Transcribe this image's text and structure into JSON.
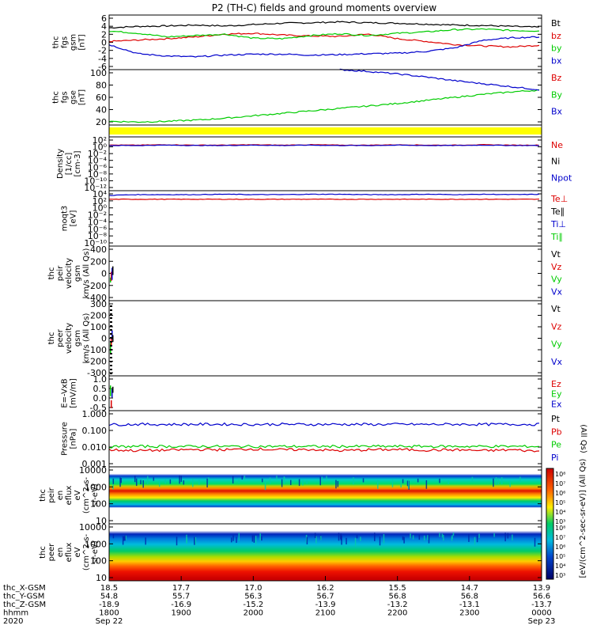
{
  "title": "P2 (TH-C) fields and ground moments overview",
  "footer": {
    "row_labels": [
      "thc_X-GSM",
      "thc_Y-GSM",
      "thc_Z-GSM",
      "hhmm",
      "2020"
    ],
    "columns": [
      {
        "x": "18.5",
        "y": "54.8",
        "z": "-18.9",
        "hhmm": "1800",
        "date": "Sep 22"
      },
      {
        "x": "17.7",
        "y": "55.7",
        "z": "-16.9",
        "hhmm": "1900",
        "date": ""
      },
      {
        "x": "17.0",
        "y": "56.3",
        "z": "-15.2",
        "hhmm": "2000",
        "date": ""
      },
      {
        "x": "16.2",
        "y": "56.7",
        "z": "-13.9",
        "hhmm": "2100",
        "date": ""
      },
      {
        "x": "15.5",
        "y": "56.8",
        "z": "-13.2",
        "hhmm": "2200",
        "date": ""
      },
      {
        "x": "14.7",
        "y": "56.8",
        "z": "-13.1",
        "hhmm": "2300",
        "date": ""
      },
      {
        "x": "13.9",
        "y": "56.6",
        "z": "-13.7",
        "hhmm": "0000",
        "date": "Sep 23"
      }
    ]
  },
  "colorbar": {
    "label": "[eV/(cm^2-sec-sr-eV)] (All Qs)",
    "ticks_top": [
      "10⁸",
      "10⁷",
      "10⁶",
      "10⁵",
      "10⁴",
      "10³"
    ],
    "ticks_bottom": [
      "10⁸",
      "10⁷",
      "10⁶",
      "10⁵",
      "10⁴",
      "10³"
    ]
  },
  "chart_data": [
    {
      "type": "line",
      "ylabel": [
        "thc",
        "fgs",
        "gsm",
        "[nT]"
      ],
      "yticks": [
        "6",
        "4",
        "2",
        "0",
        "-2",
        "-4",
        "-6"
      ],
      "ylim": [
        -6,
        6
      ],
      "legend": [
        {
          "text": "Bt",
          "color": "#000000"
        },
        {
          "text": "bz",
          "color": "#dd0000"
        },
        {
          "text": "by",
          "color": "#00cc00"
        },
        {
          "text": "bx",
          "color": "#0000cc"
        }
      ],
      "series": [
        {
          "name": "Bt",
          "color": "#000000",
          "values": [
            3.2,
            3.5,
            3.6,
            3.8,
            3.6,
            3.9,
            4.2,
            4.3,
            4.5,
            4.3,
            4.2,
            4.0,
            3.8,
            3.7,
            3.5,
            3.3
          ]
        },
        {
          "name": "bz",
          "color": "#dd0000",
          "values": [
            0.2,
            0.5,
            0.8,
            1.2,
            1.8,
            2.0,
            1.6,
            1.4,
            1.3,
            1.8,
            0.8,
            0.2,
            -0.5,
            -0.8,
            -1.0,
            -0.6
          ]
        },
        {
          "name": "by",
          "color": "#00cc00",
          "values": [
            2.5,
            2.0,
            1.2,
            1.5,
            1.8,
            0.9,
            0.8,
            1.5,
            1.9,
            1.5,
            2.0,
            2.3,
            2.8,
            2.9,
            2.6,
            2.5
          ]
        },
        {
          "name": "bx",
          "color": "#0000cc",
          "values": [
            -0.5,
            -2.5,
            -3.0,
            -3.2,
            -2.8,
            -2.6,
            -2.6,
            -2.8,
            -2.7,
            -2.5,
            -2.4,
            -2.0,
            -1.2,
            0.5,
            1.0,
            1.2
          ]
        }
      ]
    },
    {
      "type": "line",
      "ylabel": [
        "thc",
        "fgs",
        "gse",
        "[nT]"
      ],
      "yticks": [
        "100",
        "80",
        "60",
        "40",
        "20"
      ],
      "ylim": [
        10,
        100
      ],
      "legend": [
        {
          "text": "Bz",
          "color": "#dd0000"
        },
        {
          "text": "By",
          "color": "#00cc00"
        },
        {
          "text": "Bx",
          "color": "#0000cc"
        }
      ],
      "series": [
        {
          "name": "By",
          "color": "#00cc00",
          "values": [
            16,
            15,
            16,
            18,
            21,
            25,
            29,
            33,
            37,
            41,
            45,
            50,
            55,
            60,
            64,
            67
          ]
        },
        {
          "name": "Bx",
          "color": "#0000cc",
          "values": [
            null,
            null,
            null,
            null,
            null,
            null,
            null,
            null,
            100,
            97,
            93,
            88,
            82,
            77,
            72,
            67
          ]
        }
      ]
    },
    {
      "type": "flag_bar",
      "ylabel": [],
      "yticks": []
    },
    {
      "type": "line",
      "scale": "log",
      "ylabel": [
        "Density",
        "[1/cc]",
        "[cm-3]"
      ],
      "yticks": [
        "10²",
        "10⁰",
        "10⁻²",
        "10⁻⁴",
        "10⁻⁶",
        "10⁻⁸",
        "10⁻¹⁰",
        "10⁻¹²"
      ],
      "ylim": [
        -13,
        2
      ],
      "legend": [
        {
          "text": "Ne",
          "color": "#dd0000"
        },
        {
          "text": "Ni",
          "color": "#000000"
        },
        {
          "text": "Npot",
          "color": "#0000cc"
        }
      ],
      "series": [
        {
          "name": "Ne",
          "color": "#dd0000",
          "values": [
            -0.3,
            -0.3,
            -0.2,
            -0.3,
            -0.3,
            -0.2,
            -0.3,
            -0.2,
            -0.3,
            -0.3,
            -0.2,
            -0.3,
            -0.3,
            -0.2,
            -0.3,
            -0.3
          ]
        },
        {
          "name": "Npot",
          "color": "#0000cc",
          "values": [
            -0.4,
            -0.4,
            -0.3,
            -0.4,
            -0.4,
            -0.3,
            -0.4,
            -0.3,
            -0.4,
            -0.4,
            -0.3,
            -0.4,
            -0.4,
            -0.3,
            -0.4,
            -0.4
          ]
        }
      ]
    },
    {
      "type": "line",
      "scale": "log",
      "ylabel": [
        "moqt3",
        "[eV]"
      ],
      "yticks": [
        "10⁴",
        "10²",
        "10⁰",
        "10⁻²",
        "10⁻⁴",
        "10⁻⁶",
        "10⁻⁸",
        "10⁻¹⁰"
      ],
      "ylim": [
        -11,
        4.5
      ],
      "legend": [
        {
          "text": "Te⊥",
          "color": "#dd0000"
        },
        {
          "text": "Te∥",
          "color": "#000000"
        },
        {
          "text": "Ti⊥",
          "color": "#0000cc"
        },
        {
          "text": "Ti∥",
          "color": "#00cc00"
        }
      ],
      "series": [
        {
          "name": "Ti⊥",
          "color": "#0000cc",
          "values": [
            3.2,
            3.4,
            3.4,
            3.4,
            3.5,
            3.4,
            3.4,
            3.5,
            3.5,
            3.4,
            3.4,
            3.5,
            3.4,
            3.5,
            3.4,
            3.5
          ]
        },
        {
          "name": "Te⊥",
          "color": "#dd0000",
          "values": [
            2.1,
            2.1,
            2.1,
            2.1,
            2.1,
            2.1,
            2.1,
            2.1,
            2.1,
            2.1,
            2.1,
            2.1,
            2.1,
            2.1,
            2.1,
            2.1
          ]
        }
      ]
    },
    {
      "type": "line",
      "ylabel": [
        "thc",
        "peir",
        "velocity",
        "gsm",
        "km/s (All Qs)"
      ],
      "yticks": [
        "400",
        "200",
        "0",
        "-200",
        "-400"
      ],
      "ylim": [
        -450,
        450
      ],
      "legend": [
        {
          "text": "Vt",
          "color": "#000000"
        },
        {
          "text": "Vz",
          "color": "#dd0000"
        },
        {
          "text": "Vy",
          "color": "#00cc00"
        },
        {
          "text": "Vx",
          "color": "#0000cc"
        }
      ]
    },
    {
      "type": "line",
      "ylabel": [
        "thc",
        "peer",
        "velocity",
        "gsm",
        "km/s (All Qs)"
      ],
      "yticks": [
        "300",
        "200",
        "100",
        "0",
        "-100",
        "-200",
        "-300"
      ],
      "ylim": [
        -320,
        320
      ],
      "legend": [
        {
          "text": "Vt",
          "color": "#000000"
        },
        {
          "text": "Vz",
          "color": "#dd0000"
        },
        {
          "text": "Vy",
          "color": "#00cc00"
        },
        {
          "text": "Vx",
          "color": "#0000cc"
        }
      ]
    },
    {
      "type": "line",
      "ylabel": [
        "E=-VxB",
        "[mV/m]"
      ],
      "yticks": [
        "1.0",
        "0.5",
        "0.0",
        "-0.5"
      ],
      "ylim": [
        -0.6,
        1.4
      ],
      "legend": [
        {
          "text": "Ez",
          "color": "#dd0000"
        },
        {
          "text": "Ey",
          "color": "#00cc00"
        },
        {
          "text": "Ex",
          "color": "#0000cc"
        }
      ]
    },
    {
      "type": "line",
      "scale": "log",
      "ylabel": [
        "Pressure",
        "[nPa]"
      ],
      "yticks": [
        "1.000",
        "0.100",
        "0.010",
        "0.001"
      ],
      "ylim": [
        -3.2,
        0.1
      ],
      "legend": [
        {
          "text": "Pt",
          "color": "#000000"
        },
        {
          "text": "Pb",
          "color": "#dd0000"
        },
        {
          "text": "Pe",
          "color": "#00cc00"
        },
        {
          "text": "Pi",
          "color": "#0000cc"
        }
      ],
      "extra_label": "(All Qs)",
      "series": [
        {
          "name": "Pt",
          "color": "#0000cc",
          "values": [
            -0.72,
            -0.7,
            -0.71,
            -0.7,
            -0.7,
            -0.71,
            -0.7,
            -0.71,
            -0.7,
            -0.71,
            -0.7,
            -0.71,
            -0.7,
            -0.71,
            -0.7,
            -0.71
          ]
        },
        {
          "name": "Pe",
          "color": "#00cc00",
          "values": [
            -2.02,
            -2.0,
            -2.0,
            -2.0,
            -2.0,
            -2.0,
            -2.0,
            -2.0,
            -2.0,
            -2.0,
            -2.0,
            -2.0,
            -2.0,
            -2.0,
            -2.0,
            -2.0
          ]
        },
        {
          "name": "Pb",
          "color": "#dd0000",
          "values": [
            -2.2,
            -2.25,
            -2.22,
            -2.18,
            -2.2,
            -2.15,
            -2.2,
            -2.18,
            -2.25,
            -2.2,
            -2.18,
            -2.22,
            -2.2,
            -2.25,
            -2.2,
            -2.3
          ]
        }
      ]
    },
    {
      "type": "heatmap",
      "ylabel": [
        "thc",
        "peir",
        "en",
        "eflux",
        "eV",
        "(cm^2-s-",
        "sr-eV)"
      ],
      "yticks": [
        "10000",
        "1000",
        "100",
        "10"
      ],
      "ylim": [
        0.5,
        4.3
      ]
    },
    {
      "type": "heatmap",
      "ylabel": [
        "thc",
        "peer",
        "en",
        "eflux",
        "eV",
        "(cm^2-s-",
        "sr-eV)"
      ],
      "yticks": [
        "10000",
        "1000",
        "100",
        "10"
      ],
      "ylim": [
        0.5,
        4.3
      ]
    }
  ]
}
